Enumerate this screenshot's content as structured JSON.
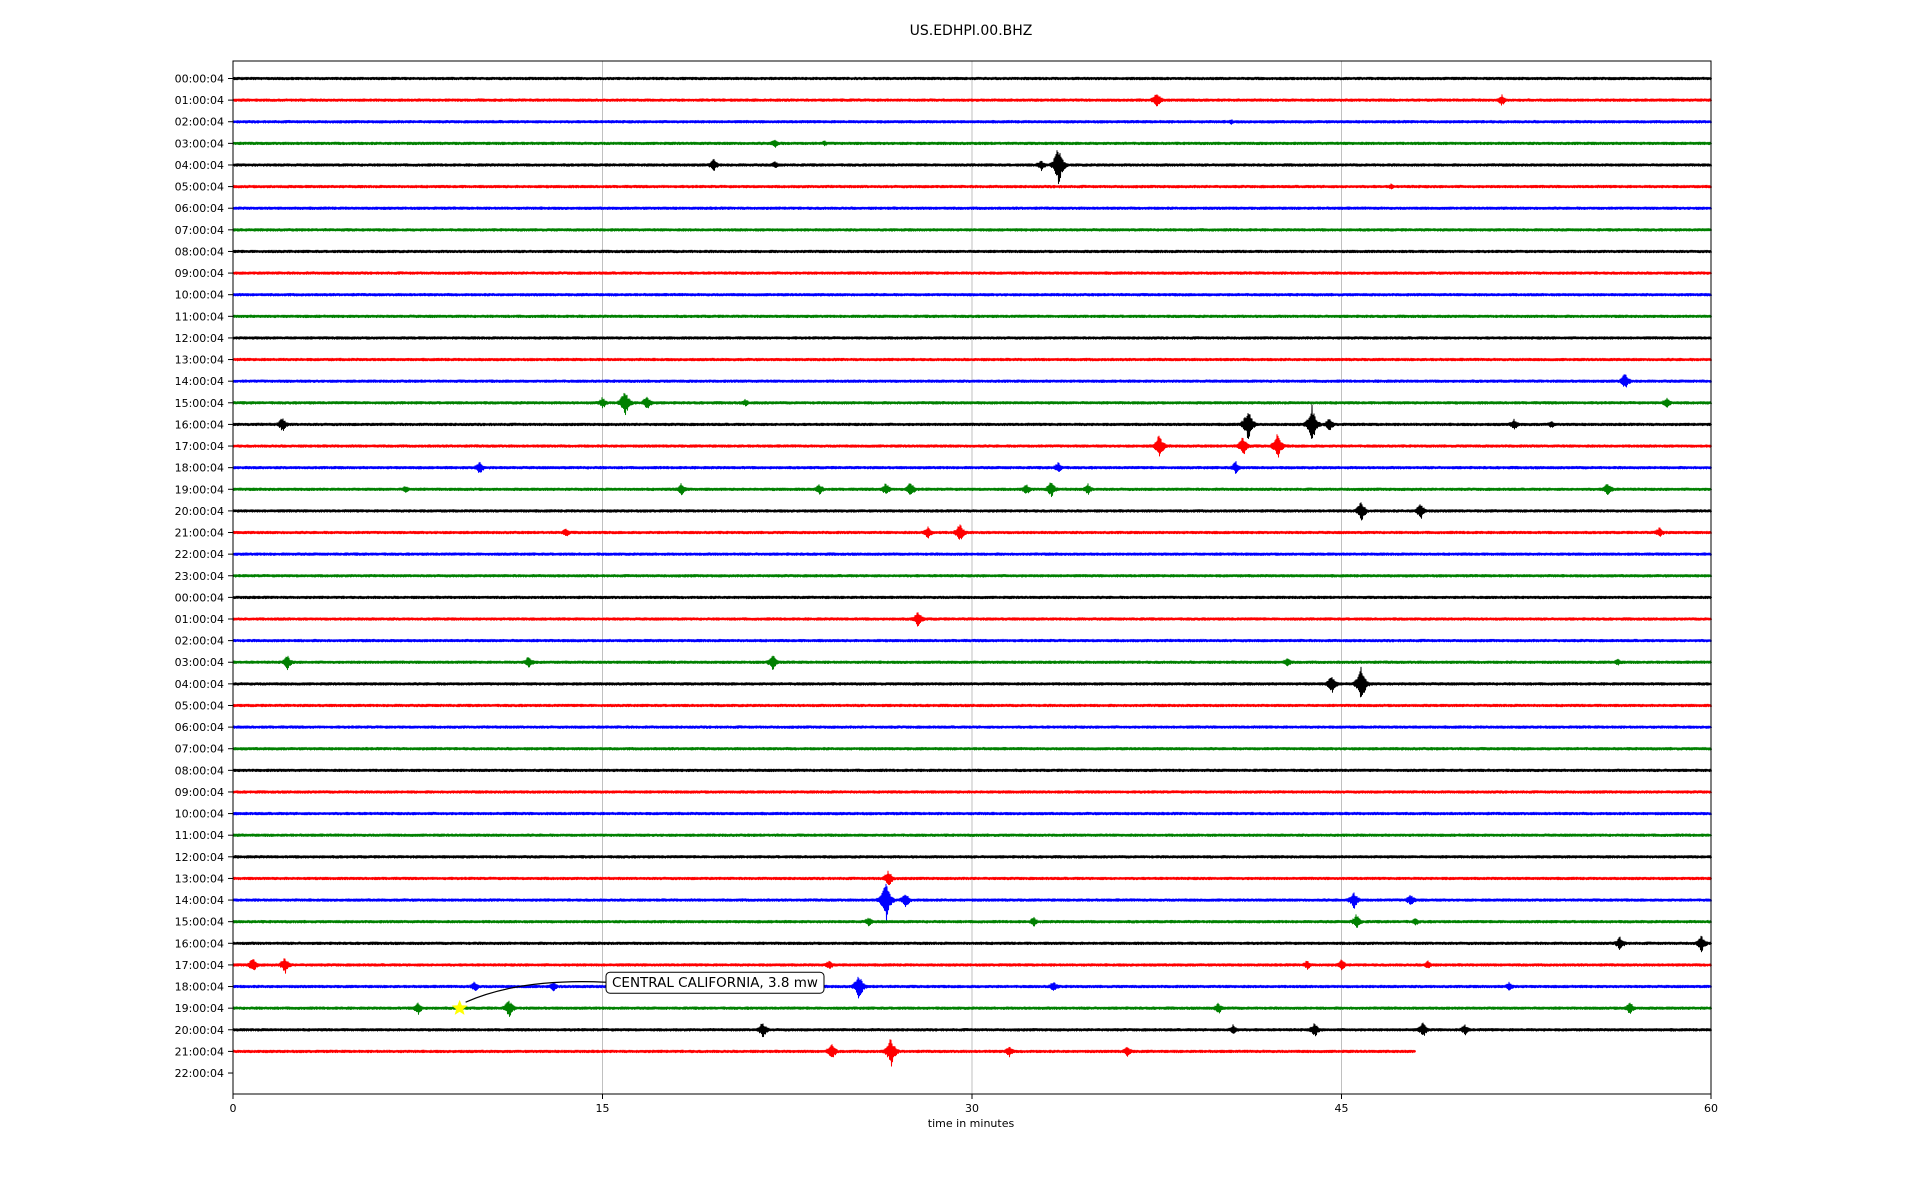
{
  "chart_data": {
    "type": "line",
    "title": "US.EDHPI.00.BHZ",
    "xlabel": "time in minutes",
    "ylabel": "",
    "xlim": [
      0,
      60
    ],
    "xticks": [
      "0",
      "15",
      "30",
      "45",
      "60"
    ],
    "grid": "vertical lines at 15-minute ticks",
    "legend": "none",
    "trace_colors": [
      "#000000",
      "#ff0000",
      "#0000ff",
      "#008000"
    ],
    "row_labels": [
      "00:00:04",
      "01:00:04",
      "02:00:04",
      "03:00:04",
      "04:00:04",
      "05:00:04",
      "06:00:04",
      "07:00:04",
      "08:00:04",
      "09:00:04",
      "10:00:04",
      "11:00:04",
      "12:00:04",
      "13:00:04",
      "14:00:04",
      "15:00:04",
      "16:00:04",
      "17:00:04",
      "18:00:04",
      "19:00:04",
      "20:00:04",
      "21:00:04",
      "22:00:04",
      "23:00:04",
      "00:00:04",
      "01:00:04",
      "02:00:04",
      "03:00:04",
      "04:00:04",
      "05:00:04",
      "06:00:04",
      "07:00:04",
      "08:00:04",
      "09:00:04",
      "10:00:04",
      "11:00:04",
      "12:00:04",
      "13:00:04",
      "14:00:04",
      "15:00:04",
      "16:00:04",
      "17:00:04",
      "18:00:04",
      "19:00:04",
      "20:00:04",
      "21:00:04",
      "22:00:04"
    ],
    "trace_end_minutes": {
      "45": 48
    },
    "bursts": [
      {
        "row": 1,
        "minute": 37.5,
        "amp": 9
      },
      {
        "row": 1,
        "minute": 51.5,
        "amp": 6
      },
      {
        "row": 2,
        "minute": 40.5,
        "amp": 3
      },
      {
        "row": 3,
        "minute": 22,
        "amp": 5
      },
      {
        "row": 3,
        "minute": 24,
        "amp": 3
      },
      {
        "row": 4,
        "minute": 19.5,
        "amp": 7
      },
      {
        "row": 4,
        "minute": 22,
        "amp": 4
      },
      {
        "row": 4,
        "minute": 33.5,
        "amp": 22
      },
      {
        "row": 4,
        "minute": 32.8,
        "amp": 6
      },
      {
        "row": 5,
        "minute": 47,
        "amp": 3
      },
      {
        "row": 14,
        "minute": 56.5,
        "amp": 9
      },
      {
        "row": 15,
        "minute": 15,
        "amp": 6
      },
      {
        "row": 15,
        "minute": 15.9,
        "amp": 15
      },
      {
        "row": 15,
        "minute": 16.8,
        "amp": 8
      },
      {
        "row": 15,
        "minute": 20.8,
        "amp": 4
      },
      {
        "row": 15,
        "minute": 58.2,
        "amp": 6
      },
      {
        "row": 16,
        "minute": 2,
        "amp": 8
      },
      {
        "row": 16,
        "minute": 41.2,
        "amp": 18
      },
      {
        "row": 16,
        "minute": 43.8,
        "amp": 20
      },
      {
        "row": 16,
        "minute": 44.5,
        "amp": 7
      },
      {
        "row": 16,
        "minute": 52,
        "amp": 6
      },
      {
        "row": 16,
        "minute": 53.5,
        "amp": 4
      },
      {
        "row": 17,
        "minute": 37.6,
        "amp": 13
      },
      {
        "row": 17,
        "minute": 41,
        "amp": 11
      },
      {
        "row": 17,
        "minute": 42.4,
        "amp": 14
      },
      {
        "row": 18,
        "minute": 10,
        "amp": 7
      },
      {
        "row": 18,
        "minute": 33.5,
        "amp": 6
      },
      {
        "row": 18,
        "minute": 40.7,
        "amp": 7
      },
      {
        "row": 19,
        "minute": 7,
        "amp": 4
      },
      {
        "row": 19,
        "minute": 18.2,
        "amp": 7
      },
      {
        "row": 19,
        "minute": 23.8,
        "amp": 6
      },
      {
        "row": 19,
        "minute": 26.5,
        "amp": 7
      },
      {
        "row": 19,
        "minute": 27.5,
        "amp": 8
      },
      {
        "row": 19,
        "minute": 32.2,
        "amp": 6
      },
      {
        "row": 19,
        "minute": 33.2,
        "amp": 9
      },
      {
        "row": 19,
        "minute": 34.7,
        "amp": 6
      },
      {
        "row": 19,
        "minute": 55.8,
        "amp": 8
      },
      {
        "row": 20,
        "minute": 45.8,
        "amp": 11
      },
      {
        "row": 20,
        "minute": 48.2,
        "amp": 9
      },
      {
        "row": 21,
        "minute": 13.5,
        "amp": 5
      },
      {
        "row": 21,
        "minute": 28.2,
        "amp": 7
      },
      {
        "row": 21,
        "minute": 29.5,
        "amp": 10
      },
      {
        "row": 21,
        "minute": 57.9,
        "amp": 6
      },
      {
        "row": 25,
        "minute": 27.8,
        "amp": 9
      },
      {
        "row": 27,
        "minute": 2.2,
        "amp": 8
      },
      {
        "row": 27,
        "minute": 12,
        "amp": 7
      },
      {
        "row": 27,
        "minute": 21.9,
        "amp": 9
      },
      {
        "row": 27,
        "minute": 42.8,
        "amp": 5
      },
      {
        "row": 27,
        "minute": 56.2,
        "amp": 4
      },
      {
        "row": 28,
        "minute": 44.6,
        "amp": 10
      },
      {
        "row": 28,
        "minute": 45.8,
        "amp": 19
      },
      {
        "row": 37,
        "minute": 26.6,
        "amp": 9
      },
      {
        "row": 38,
        "minute": 26.5,
        "amp": 22
      },
      {
        "row": 38,
        "minute": 27.3,
        "amp": 8
      },
      {
        "row": 38,
        "minute": 45.5,
        "amp": 10
      },
      {
        "row": 38,
        "minute": 47.8,
        "amp": 7
      },
      {
        "row": 39,
        "minute": 25.8,
        "amp": 5
      },
      {
        "row": 39,
        "minute": 32.5,
        "amp": 5
      },
      {
        "row": 39,
        "minute": 45.6,
        "amp": 8
      },
      {
        "row": 39,
        "minute": 48,
        "amp": 4
      },
      {
        "row": 40,
        "minute": 56.3,
        "amp": 8
      },
      {
        "row": 40,
        "minute": 59.6,
        "amp": 9
      },
      {
        "row": 41,
        "minute": 0.8,
        "amp": 8
      },
      {
        "row": 41,
        "minute": 2.1,
        "amp": 9
      },
      {
        "row": 41,
        "minute": 24.2,
        "amp": 5
      },
      {
        "row": 41,
        "minute": 43.6,
        "amp": 5
      },
      {
        "row": 41,
        "minute": 45,
        "amp": 6
      },
      {
        "row": 41,
        "minute": 48.5,
        "amp": 5
      },
      {
        "row": 42,
        "minute": 9.8,
        "amp": 6
      },
      {
        "row": 42,
        "minute": 13,
        "amp": 5
      },
      {
        "row": 42,
        "minute": 25.4,
        "amp": 14
      },
      {
        "row": 42,
        "minute": 33.3,
        "amp": 6
      },
      {
        "row": 42,
        "minute": 51.8,
        "amp": 5
      },
      {
        "row": 43,
        "minute": 7.5,
        "amp": 7
      },
      {
        "row": 43,
        "minute": 11.2,
        "amp": 10
      },
      {
        "row": 43,
        "minute": 40,
        "amp": 6
      },
      {
        "row": 43,
        "minute": 56.7,
        "amp": 7
      },
      {
        "row": 44,
        "minute": 21.5,
        "amp": 9
      },
      {
        "row": 44,
        "minute": 40.6,
        "amp": 6
      },
      {
        "row": 44,
        "minute": 43.9,
        "amp": 8
      },
      {
        "row": 44,
        "minute": 48.3,
        "amp": 8
      },
      {
        "row": 44,
        "minute": 50,
        "amp": 6
      },
      {
        "row": 45,
        "minute": 24.3,
        "amp": 9
      },
      {
        "row": 45,
        "minute": 26.7,
        "amp": 16
      },
      {
        "row": 45,
        "minute": 31.5,
        "amp": 6
      },
      {
        "row": 45,
        "minute": 36.3,
        "amp": 6
      }
    ],
    "annotations": [
      {
        "text": "CENTRAL CALIFORNIA, 3.8 mw",
        "row": 43,
        "minute": 9.2,
        "marker": "star",
        "marker_color": "#ffff00"
      }
    ]
  }
}
